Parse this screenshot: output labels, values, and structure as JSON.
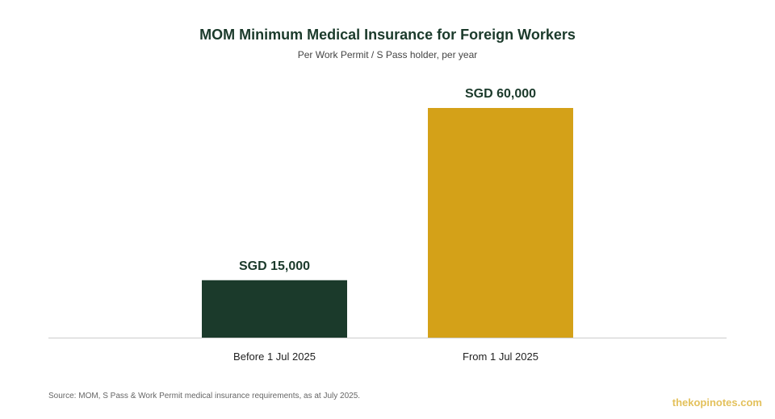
{
  "chart_data": {
    "type": "bar",
    "title": "MOM Minimum Medical Insurance for Foreign Workers",
    "subtitle": "Per Work Permit / S Pass holder, per year",
    "categories": [
      "Before 1 Jul 2025",
      "From 1 Jul 2025"
    ],
    "values": [
      15000,
      60000
    ],
    "data_labels": [
      "SGD 15,000",
      "SGD 60,000"
    ],
    "colors": [
      "#1b3a2b",
      "#d4a118"
    ],
    "ylim": [
      0,
      60000
    ],
    "grid": false,
    "xlabel": "",
    "ylabel": ""
  },
  "footer": {
    "source": "Source: MOM, S Pass & Work Permit medical insurance requirements, as at July 2025.",
    "watermark": "thekopinotes.com"
  }
}
